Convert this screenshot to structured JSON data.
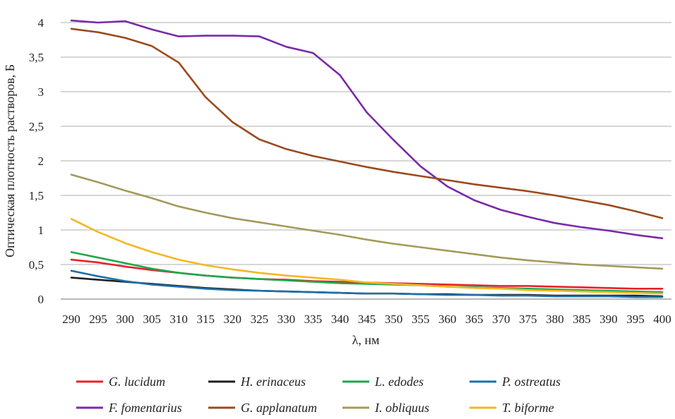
{
  "chart_data": {
    "type": "line",
    "xlabel": "λ, нм",
    "ylabel": "Оптическая плотность растворов, Б",
    "xlim": [
      290,
      400
    ],
    "ylim": [
      0,
      4
    ],
    "grid": true,
    "legend_position": "bottom",
    "x": [
      290,
      295,
      300,
      305,
      310,
      315,
      320,
      325,
      330,
      335,
      340,
      345,
      350,
      355,
      360,
      365,
      370,
      375,
      380,
      385,
      390,
      395,
      400
    ],
    "x_tick_labels": [
      "290",
      "295",
      "300",
      "305",
      "310",
      "315",
      "320",
      "325",
      "330",
      "335",
      "340",
      "345",
      "350",
      "355",
      "360",
      "365",
      "370",
      "375",
      "380",
      "385",
      "390",
      "395",
      "400"
    ],
    "y_ticks": [
      0,
      0.5,
      1,
      1.5,
      2,
      2.5,
      3,
      3.5,
      4
    ],
    "y_tick_labels": [
      "0",
      "0,5",
      "1",
      "1,5",
      "2",
      "2,5",
      "3",
      "3,5",
      "4"
    ],
    "series": [
      {
        "name": "G. lucidum",
        "color": "#e8202a",
        "values": [
          0.57,
          0.53,
          0.47,
          0.42,
          0.38,
          0.34,
          0.31,
          0.29,
          0.28,
          0.26,
          0.25,
          0.24,
          0.23,
          0.22,
          0.21,
          0.2,
          0.19,
          0.19,
          0.18,
          0.17,
          0.16,
          0.15,
          0.15
        ]
      },
      {
        "name": "H. erinaceus",
        "color": "#1f1f1f",
        "values": [
          0.31,
          0.28,
          0.25,
          0.22,
          0.19,
          0.16,
          0.14,
          0.12,
          0.11,
          0.1,
          0.09,
          0.08,
          0.08,
          0.07,
          0.07,
          0.06,
          0.06,
          0.06,
          0.05,
          0.05,
          0.05,
          0.05,
          0.04
        ]
      },
      {
        "name": "L. edodes",
        "color": "#1ea84a",
        "values": [
          0.68,
          0.6,
          0.52,
          0.44,
          0.38,
          0.34,
          0.31,
          0.29,
          0.27,
          0.25,
          0.23,
          0.22,
          0.21,
          0.2,
          0.18,
          0.17,
          0.16,
          0.15,
          0.14,
          0.13,
          0.12,
          0.11,
          0.1
        ]
      },
      {
        "name": "P. ostreatus",
        "color": "#1f6fa8",
        "values": [
          0.41,
          0.33,
          0.26,
          0.21,
          0.18,
          0.15,
          0.13,
          0.12,
          0.11,
          0.1,
          0.09,
          0.08,
          0.08,
          0.07,
          0.06,
          0.06,
          0.05,
          0.05,
          0.04,
          0.04,
          0.04,
          0.03,
          0.03
        ]
      },
      {
        "name": "F. fomentarius",
        "color": "#7a2aa8",
        "values": [
          4.03,
          4.0,
          4.02,
          3.9,
          3.8,
          3.81,
          3.81,
          3.8,
          3.65,
          3.56,
          3.24,
          2.7,
          2.3,
          1.92,
          1.63,
          1.43,
          1.29,
          1.19,
          1.1,
          1.04,
          0.99,
          0.93,
          0.88
        ]
      },
      {
        "name": "G. applanatum",
        "color": "#9a4a1e",
        "values": [
          3.91,
          3.86,
          3.78,
          3.66,
          3.42,
          2.92,
          2.56,
          2.31,
          2.17,
          2.07,
          1.99,
          1.91,
          1.84,
          1.78,
          1.72,
          1.66,
          1.61,
          1.56,
          1.5,
          1.43,
          1.36,
          1.27,
          1.17
        ]
      },
      {
        "name": "I. obliquus",
        "color": "#a39a5a",
        "values": [
          1.8,
          1.69,
          1.57,
          1.46,
          1.34,
          1.25,
          1.17,
          1.11,
          1.05,
          0.99,
          0.93,
          0.86,
          0.8,
          0.75,
          0.7,
          0.65,
          0.6,
          0.56,
          0.53,
          0.5,
          0.48,
          0.46,
          0.44
        ]
      },
      {
        "name": "T. biforme",
        "color": "#f2b824",
        "values": [
          1.16,
          0.97,
          0.81,
          0.68,
          0.57,
          0.49,
          0.43,
          0.38,
          0.34,
          0.31,
          0.28,
          0.24,
          0.22,
          0.2,
          0.18,
          0.16,
          0.15,
          0.13,
          0.12,
          0.11,
          0.1,
          0.09,
          0.08
        ]
      }
    ]
  }
}
